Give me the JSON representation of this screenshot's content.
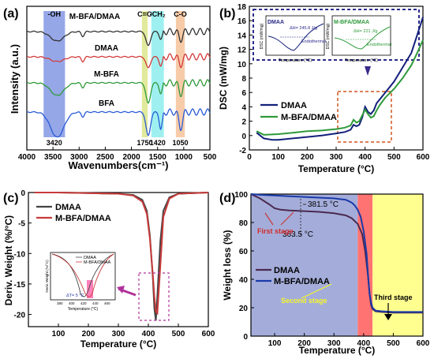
{
  "chart_data": [
    {
      "panel": "(a)",
      "type": "line",
      "xlabel": "Wavenumbers(cm⁻¹)",
      "ylabel": "Intensity (a.u.)",
      "xlim": [
        4000,
        500
      ],
      "x_ticks": [
        "4000",
        "3500",
        "3000",
        "2500",
        "2000",
        "1500",
        "1000",
        "500"
      ],
      "series_labels": [
        "M-BFA/DMAA",
        "DMAA",
        "M-BFA",
        "BFA"
      ],
      "colors": [
        "#333333",
        "#d23a3a",
        "#2f9a3a",
        "#2a5bd7"
      ],
      "bands": [
        {
          "label": "-OH",
          "peak_label": "3420",
          "range": [
            3680,
            3270
          ],
          "color": "#3f5fd6"
        },
        {
          "label": "C=O",
          "peak_label": "1750",
          "range": [
            1800,
            1690
          ],
          "color": "#c8d84a"
        },
        {
          "label": "-CH₂",
          "peak_label": "1420",
          "range": [
            1620,
            1380
          ],
          "color": "#4fe3e3"
        },
        {
          "label": "C-O",
          "peak_label": "1050",
          "range": [
            1150,
            980
          ],
          "color": "#f0a060"
        }
      ]
    },
    {
      "panel": "(b)",
      "type": "line",
      "xlabel": "Temperature (°C)",
      "ylabel": "DSC (mW/mg)",
      "xlim": [
        0,
        600
      ],
      "ylim": [
        -2,
        18
      ],
      "x_ticks": [
        "0",
        "100",
        "200",
        "300",
        "400",
        "500",
        "600"
      ],
      "y_ticks": [
        "-2",
        "0",
        "2",
        "4",
        "6",
        "8",
        "10",
        "12",
        "14",
        "16",
        "18"
      ],
      "series": [
        {
          "name": "DMAA",
          "color": "#13207a",
          "x": [
            25,
            50,
            80,
            100,
            150,
            200,
            250,
            300,
            330,
            350,
            360,
            370,
            380,
            390,
            400,
            410,
            420,
            430,
            440,
            450,
            470,
            500,
            530,
            560,
            580,
            600
          ],
          "y": [
            0.4,
            -0.4,
            -0.6,
            -0.6,
            -0.4,
            -0.2,
            0,
            0.3,
            0.5,
            0.8,
            1.5,
            1.3,
            1.5,
            2.5,
            4.0,
            3.3,
            3.0,
            3.5,
            4.5,
            5.0,
            6.0,
            7.5,
            9.5,
            11.5,
            14,
            16.5
          ]
        },
        {
          "name": "M-BFA/DMAA",
          "color": "#2f9a3a",
          "x": [
            25,
            50,
            100,
            150,
            200,
            250,
            300,
            330,
            350,
            360,
            370,
            380,
            390,
            400,
            410,
            420,
            430,
            440,
            450,
            470,
            500,
            530,
            560,
            580,
            600
          ],
          "y": [
            0.6,
            0.1,
            0.2,
            0.4,
            0.6,
            0.7,
            0.9,
            1.1,
            1.4,
            2.2,
            1.8,
            2.0,
            2.8,
            3.6,
            3.0,
            2.5,
            2.7,
            3.5,
            4.2,
            5.3,
            6.5,
            8.0,
            9.8,
            11.5,
            13.3
          ]
        }
      ],
      "insets": [
        {
          "title": "DMAA",
          "annotation": "ΔH= 245.8 J/g",
          "label": "Endothermal",
          "xlabel": "Temperature (°C)",
          "ylabel": "DSC (mW/mg)"
        },
        {
          "title": "M-BFA/DMAA",
          "annotation": "ΔH= 221 J/g",
          "label": "Endothermal",
          "xlabel": "Temperature (°C)",
          "ylabel": "DSC (mW/mg)"
        }
      ]
    },
    {
      "panel": "(c)",
      "type": "line",
      "xlabel": "Temperature (°C)",
      "ylabel": "Deriv. Weight (%/°C)",
      "xlim": [
        0,
        600
      ],
      "ylim": [
        -22,
        0
      ],
      "x_ticks": [
        "100",
        "200",
        "300",
        "400",
        "500",
        "600"
      ],
      "y_ticks": [
        "0",
        "-5",
        "-10",
        "-15",
        "-20"
      ],
      "series": [
        {
          "name": "DMAA",
          "color": "#444444",
          "x": [
            20,
            100,
            200,
            300,
            350,
            380,
            395,
            405,
            415,
            420,
            425,
            430,
            440,
            450,
            470,
            500,
            600
          ],
          "y": [
            0,
            0,
            -0.1,
            -0.2,
            -0.4,
            -1.2,
            -3,
            -7,
            -14,
            -19,
            -21,
            -17,
            -8,
            -3,
            -0.8,
            -0.2,
            0
          ]
        },
        {
          "name": "M-BFA/DMAA",
          "color": "#c83a3a",
          "x": [
            20,
            100,
            200,
            300,
            350,
            380,
            395,
            405,
            415,
            420,
            425,
            430,
            440,
            450,
            470,
            500,
            600
          ],
          "y": [
            0,
            0,
            -0.1,
            -0.2,
            -0.5,
            -1.5,
            -3.5,
            -7.5,
            -13.5,
            -17,
            -19.5,
            -19.8,
            -12,
            -4,
            -1,
            -0.2,
            0
          ]
        }
      ],
      "inset": {
        "legend": [
          "DMAA",
          "M-BFA/DMAA"
        ],
        "annotation": "ΔT= 5 °C",
        "xlabel": "Temperature (°C)",
        "ylabel": "Deriv. Weight (%/°C)",
        "x_ticks": [
          "380",
          "400",
          "420",
          "440",
          "460"
        ]
      }
    },
    {
      "panel": "(d)",
      "type": "line",
      "xlabel": "Temperature (°C)",
      "ylabel": "Weight loss (%)",
      "xlim": [
        20,
        600
      ],
      "ylim": [
        0,
        100
      ],
      "x_ticks": [
        "100",
        "200",
        "300",
        "400",
        "500",
        "600"
      ],
      "y_ticks": [
        "0",
        "20",
        "40",
        "60",
        "80",
        "100"
      ],
      "series": [
        {
          "name": "DMAA",
          "color": "#4a2a4f",
          "x": [
            20,
            50,
            80,
            100,
            120,
            150,
            200,
            250,
            300,
            340,
            360,
            380,
            395,
            405,
            415,
            420,
            425,
            430,
            440,
            460,
            500,
            550,
            600
          ],
          "y": [
            100,
            97,
            93,
            90,
            89,
            88.5,
            88,
            87.5,
            86.5,
            85,
            83,
            79,
            72,
            60,
            42,
            30,
            22,
            19,
            17.5,
            17,
            16.5,
            16.5,
            16.5
          ]
        },
        {
          "name": "M-BFA/DMAA",
          "color": "#1a3aa8",
          "x": [
            20,
            50,
            100,
            150,
            200,
            250,
            300,
            340,
            360,
            370,
            380,
            390,
            400,
            410,
            415,
            420,
            425,
            430,
            440,
            460,
            500,
            550,
            600
          ],
          "y": [
            100,
            99.5,
            99,
            98.5,
            98,
            97.5,
            97,
            96,
            94,
            92,
            89,
            84,
            74,
            58,
            42,
            30,
            24,
            20,
            18,
            17.5,
            17,
            17,
            17
          ]
        }
      ],
      "annotations": [
        "381.5 °C",
        "363.5 °C",
        "First stage",
        "Second stage",
        "Third stage"
      ],
      "regions": [
        {
          "range": [
            20,
            380
          ],
          "color": "#9fa9d8"
        },
        {
          "range": [
            380,
            430
          ],
          "color": "#ff6b6b"
        },
        {
          "range": [
            430,
            600
          ],
          "color": "#ffff8a"
        }
      ]
    }
  ]
}
